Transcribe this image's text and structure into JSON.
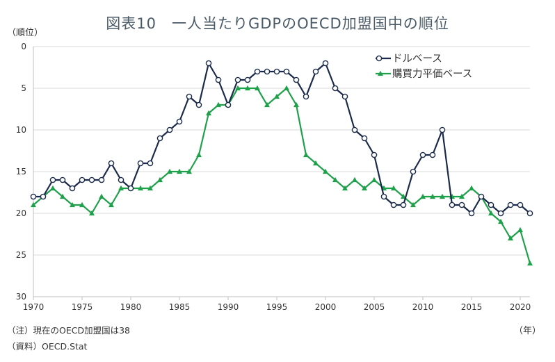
{
  "chart_data": {
    "type": "line",
    "title": "図表10　一人当たりGDPのOECD加盟国中の順位",
    "ylabel": "（順位）",
    "xlabel": "（年）",
    "y_inverted": true,
    "ylim": [
      0,
      30
    ],
    "yticks": [
      0,
      5,
      10,
      15,
      20,
      25,
      30
    ],
    "xlim": [
      1970,
      2021
    ],
    "xticks": [
      1970,
      1975,
      1980,
      1985,
      1990,
      1995,
      2000,
      2005,
      2010,
      2015,
      2020
    ],
    "grid": "horizontal",
    "legend_position": "top-right",
    "x": [
      1970,
      1971,
      1972,
      1973,
      1974,
      1975,
      1976,
      1977,
      1978,
      1979,
      1980,
      1981,
      1982,
      1983,
      1984,
      1985,
      1986,
      1987,
      1988,
      1989,
      1990,
      1991,
      1992,
      1993,
      1994,
      1995,
      1996,
      1997,
      1998,
      1999,
      2000,
      2001,
      2002,
      2003,
      2004,
      2005,
      2006,
      2007,
      2008,
      2009,
      2010,
      2011,
      2012,
      2013,
      2014,
      2015,
      2016,
      2017,
      2018,
      2019,
      2020,
      2021
    ],
    "series": [
      {
        "name": "ドルベース",
        "color": "#1b2a4a",
        "marker": "open-circle",
        "values": [
          18,
          18,
          16,
          16,
          17,
          16,
          16,
          16,
          14,
          16,
          17,
          14,
          14,
          11,
          10,
          9,
          6,
          7,
          2,
          4,
          7,
          4,
          4,
          3,
          3,
          3,
          3,
          4,
          6,
          3,
          2,
          5,
          6,
          10,
          11,
          13,
          18,
          19,
          19,
          15,
          13,
          13,
          10,
          19,
          19,
          20,
          18,
          19,
          20,
          19,
          19,
          20
        ]
      },
      {
        "name": "購買力平価ベース",
        "color": "#1fa04a",
        "marker": "triangle",
        "values": [
          19,
          18,
          17,
          18,
          19,
          19,
          20,
          18,
          19,
          17,
          17,
          17,
          17,
          16,
          15,
          15,
          15,
          13,
          8,
          7,
          7,
          5,
          5,
          5,
          7,
          6,
          5,
          7,
          13,
          14,
          15,
          16,
          17,
          16,
          17,
          16,
          17,
          17,
          18,
          19,
          18,
          18,
          18,
          18,
          18,
          17,
          18,
          20,
          21,
          23,
          22,
          26
        ]
      }
    ]
  },
  "notes": {
    "note": "（注）現在のOECD加盟国は38",
    "source": "（資料）OECD.Stat"
  }
}
